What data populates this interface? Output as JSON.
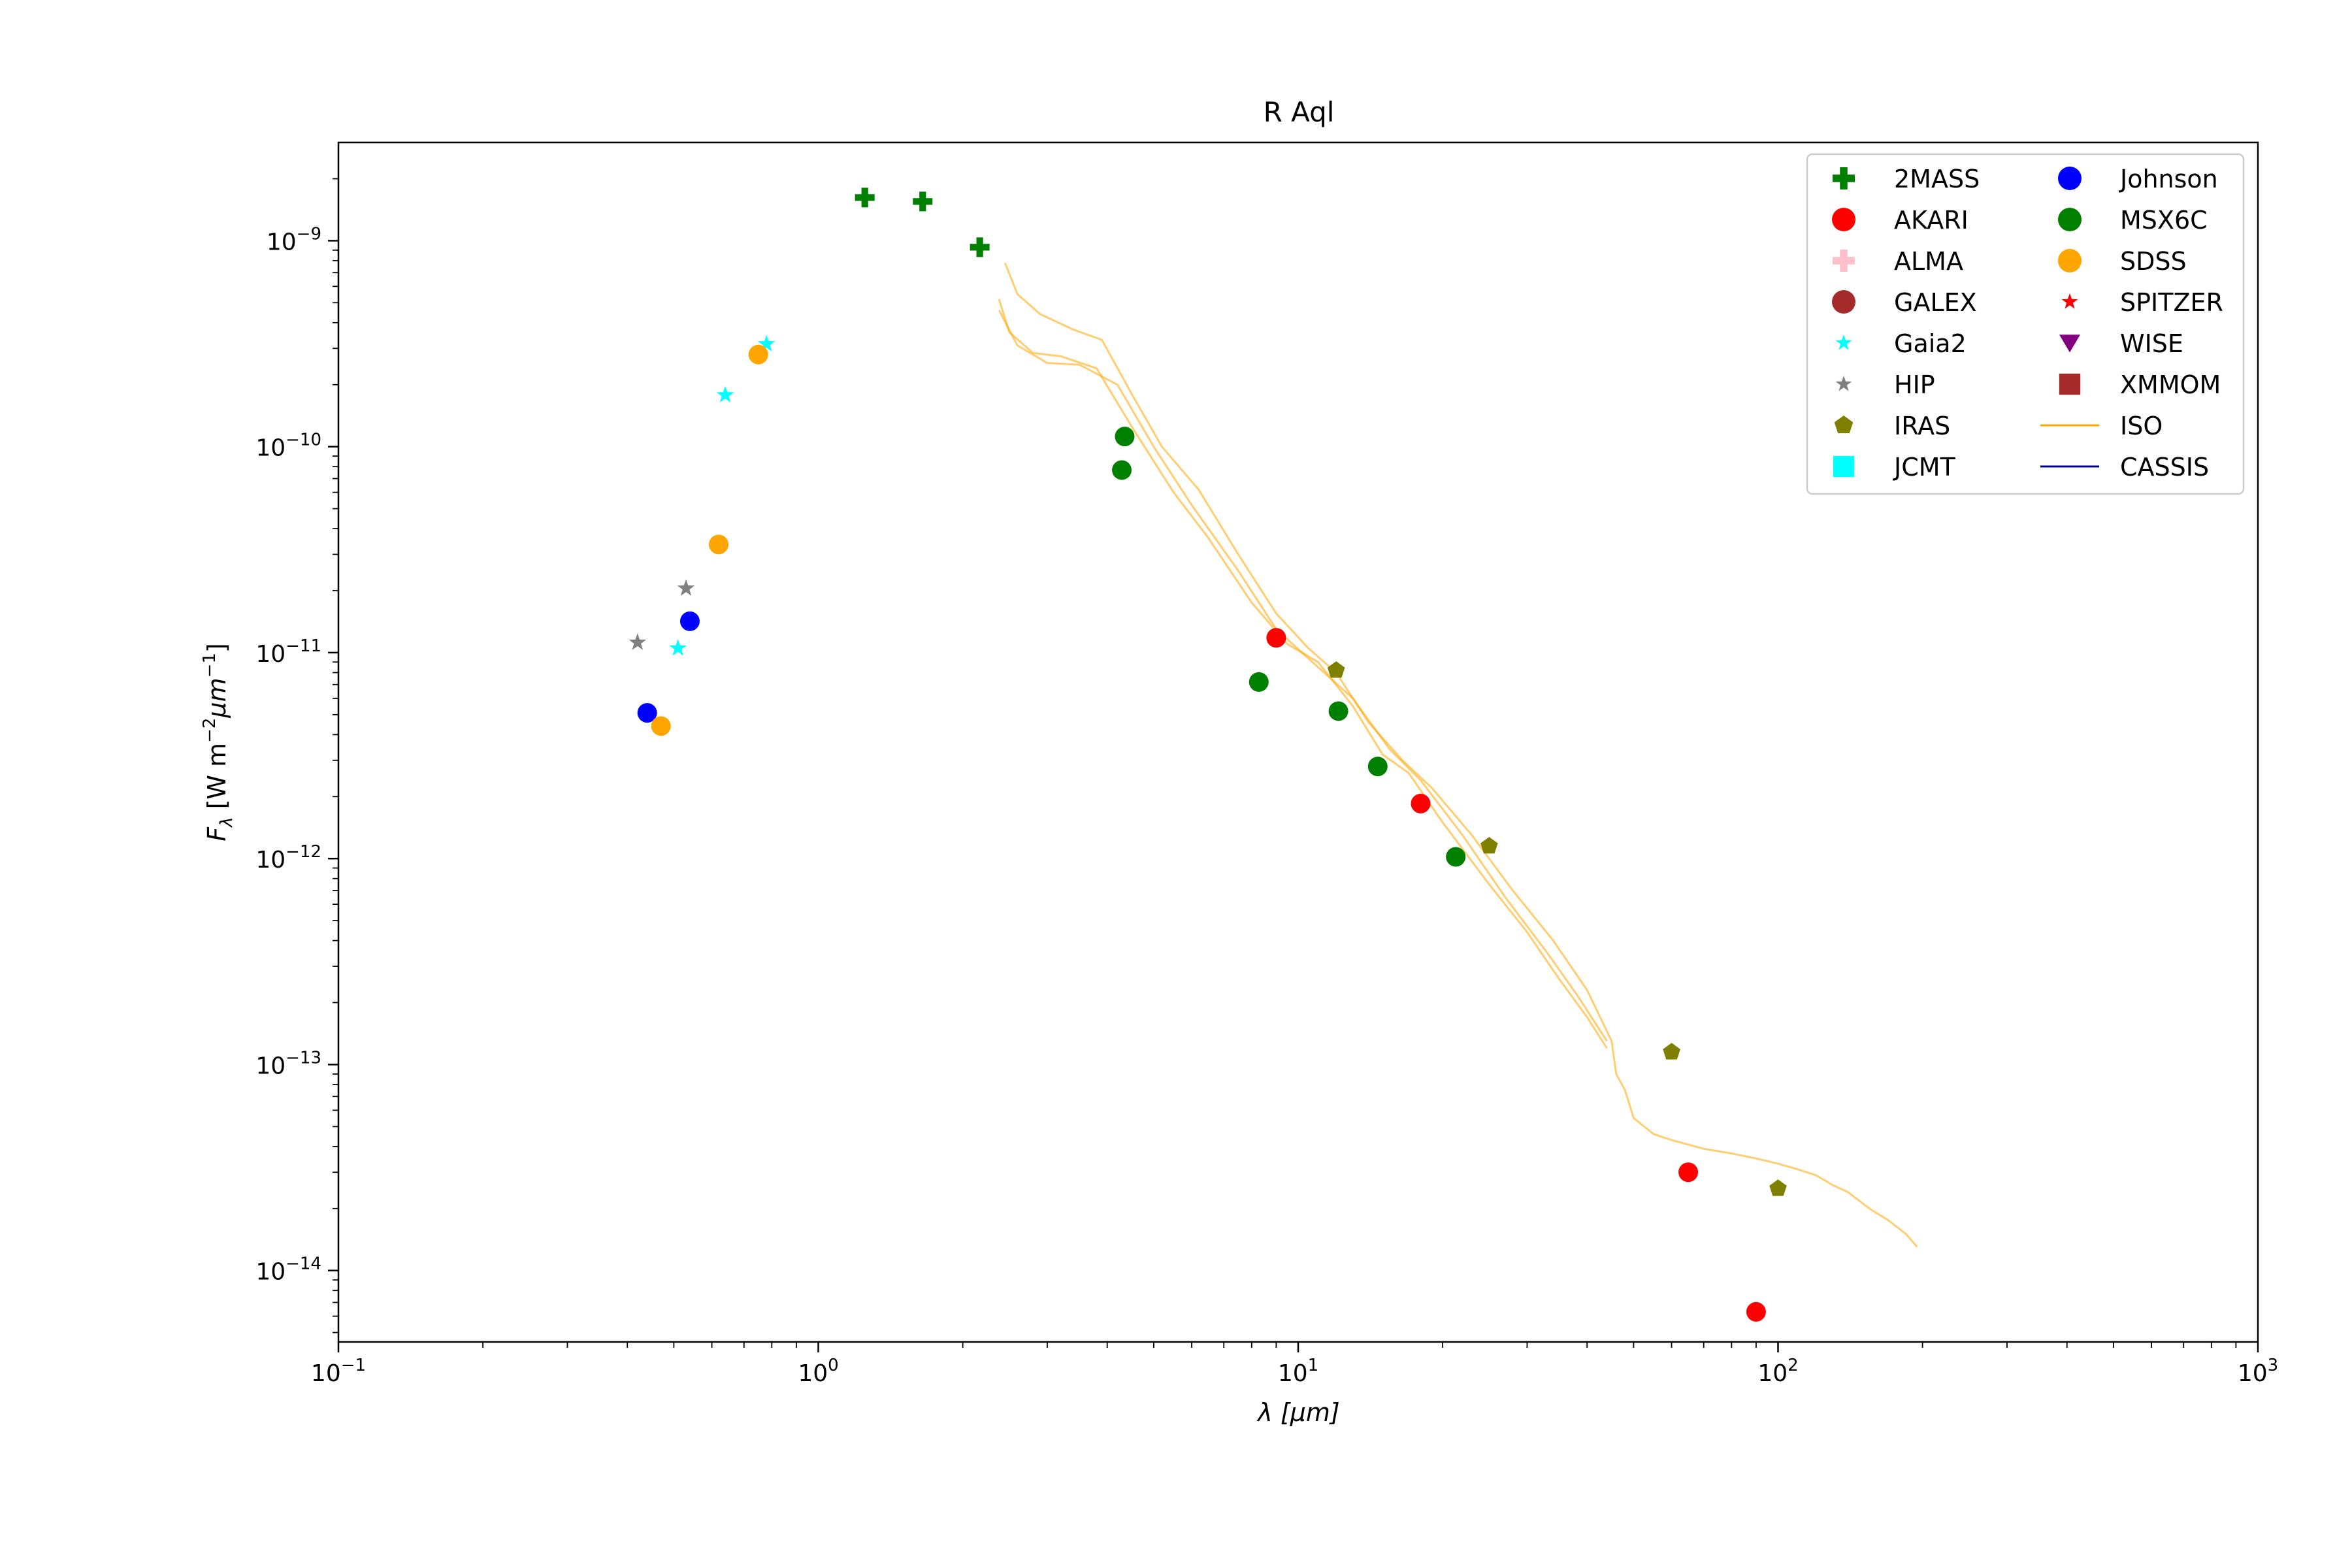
{
  "chart_data": {
    "type": "scatter",
    "title": "R Aql",
    "xlabel": "λ [μm]",
    "ylabel": "F_λ [W m^-2 μm^-1]",
    "xscale": "log",
    "yscale": "log",
    "xlim": [
      0.1,
      1000
    ],
    "ylim": [
      4.5e-15,
      3e-09
    ],
    "grid": false,
    "legend_position": "top-right",
    "legend_columns": 2,
    "x_ticks": [
      {
        "base": "10",
        "exp": "−1",
        "value": 0.1
      },
      {
        "base": "10",
        "exp": "0",
        "value": 1
      },
      {
        "base": "10",
        "exp": "1",
        "value": 10
      },
      {
        "base": "10",
        "exp": "2",
        "value": 100
      },
      {
        "base": "10",
        "exp": "3",
        "value": 1000
      }
    ],
    "y_ticks": [
      {
        "base": "10",
        "exp": "−14",
        "value": 1e-14
      },
      {
        "base": "10",
        "exp": "−13",
        "value": 1e-13
      },
      {
        "base": "10",
        "exp": "−12",
        "value": 1e-12
      },
      {
        "base": "10",
        "exp": "−11",
        "value": 1e-11
      },
      {
        "base": "10",
        "exp": "−10",
        "value": 1e-10
      },
      {
        "base": "10",
        "exp": "−9",
        "value": 1e-09
      }
    ],
    "series": [
      {
        "name": "2MASS",
        "marker": "plus",
        "color": "#008000",
        "points": [
          [
            1.25,
            1.62e-09
          ],
          [
            1.65,
            1.55e-09
          ],
          [
            2.17,
            9.3e-10
          ]
        ]
      },
      {
        "name": "AKARI",
        "marker": "circle",
        "color": "#ff0000",
        "points": [
          [
            9.0,
            1.18e-11
          ],
          [
            18.0,
            1.85e-12
          ],
          [
            65.0,
            3e-14
          ],
          [
            90.0,
            6.3e-15
          ]
        ]
      },
      {
        "name": "ALMA",
        "marker": "plus",
        "color": "#ffc0cb",
        "points": []
      },
      {
        "name": "GALEX",
        "marker": "circle",
        "color": "#a52a2a",
        "points": []
      },
      {
        "name": "Gaia2",
        "marker": "star",
        "color": "#00ffff",
        "points": [
          [
            0.51,
            1.05e-11
          ],
          [
            0.64,
            1.78e-10
          ],
          [
            0.78,
            3.15e-10
          ]
        ]
      },
      {
        "name": "HIP",
        "marker": "star",
        "color": "#808080",
        "points": [
          [
            0.42,
            1.12e-11
          ],
          [
            0.53,
            2.05e-11
          ]
        ]
      },
      {
        "name": "IRAS",
        "marker": "pentagon",
        "color": "#808000",
        "points": [
          [
            12.0,
            8.2e-12
          ],
          [
            25.0,
            1.15e-12
          ],
          [
            60.0,
            1.15e-13
          ],
          [
            100.0,
            2.5e-14
          ]
        ]
      },
      {
        "name": "JCMT",
        "marker": "square",
        "color": "#00ffff",
        "points": []
      },
      {
        "name": "Johnson",
        "marker": "circle",
        "color": "#0000ff",
        "points": [
          [
            0.44,
            5.1e-12
          ],
          [
            0.54,
            1.42e-11
          ]
        ]
      },
      {
        "name": "MSX6C",
        "marker": "circle",
        "color": "#008000",
        "points": [
          [
            4.29,
            7.7e-11
          ],
          [
            4.35,
            1.12e-10
          ],
          [
            8.28,
            7.2e-12
          ],
          [
            12.13,
            5.2e-12
          ],
          [
            14.65,
            2.8e-12
          ],
          [
            21.3,
            1.02e-12
          ]
        ]
      },
      {
        "name": "SDSS",
        "marker": "circle",
        "color": "#ffa500",
        "points": [
          [
            0.47,
            4.4e-12
          ],
          [
            0.62,
            3.35e-11
          ],
          [
            0.75,
            2.8e-10
          ]
        ]
      },
      {
        "name": "SPITZER",
        "marker": "star",
        "color": "#ff0000",
        "points": []
      },
      {
        "name": "WISE",
        "marker": "triangle-down",
        "color": "#800080",
        "points": []
      },
      {
        "name": "XMMOM",
        "marker": "square",
        "color": "#a52a2a",
        "points": []
      },
      {
        "name": "ISO",
        "marker": "line",
        "color": "#ffa500",
        "opacity": 0.55,
        "lines": [
          [
            [
              2.38,
              5.2e-10
            ],
            [
              2.5,
              3.6e-10
            ],
            [
              2.8,
              2.85e-10
            ],
            [
              3.2,
              2.75e-10
            ],
            [
              3.8,
              2.4e-10
            ],
            [
              4.5,
              1.25e-10
            ],
            [
              5.5,
              6e-11
            ],
            [
              6.5,
              3.6e-11
            ],
            [
              8.0,
              1.75e-11
            ],
            [
              9.5,
              1.1e-11
            ],
            [
              11.0,
              9e-12
            ],
            [
              13.0,
              5.5e-12
            ],
            [
              15.0,
              3.2e-12
            ],
            [
              17.0,
              2.6e-12
            ],
            [
              20.0,
              1.5e-12
            ],
            [
              25.0,
              7.5e-13
            ],
            [
              30.0,
              4.4e-13
            ],
            [
              35.0,
              2.6e-13
            ],
            [
              40.0,
              1.7e-13
            ],
            [
              44.0,
              1.2e-13
            ]
          ],
          [
            [
              2.38,
              4.6e-10
            ],
            [
              2.6,
              3.1e-10
            ],
            [
              3.0,
              2.55e-10
            ],
            [
              3.5,
              2.5e-10
            ],
            [
              4.2,
              2e-10
            ],
            [
              5.0,
              1e-10
            ],
            [
              6.0,
              5.2e-11
            ],
            [
              7.5,
              2.5e-11
            ],
            [
              9.0,
              1.3e-11
            ],
            [
              11.0,
              8.5e-12
            ],
            [
              13.0,
              6e-12
            ],
            [
              15.5,
              3.4e-12
            ],
            [
              18.0,
              2.4e-12
            ],
            [
              22.0,
              1.3e-12
            ],
            [
              27.0,
              6.5e-13
            ],
            [
              33.0,
              3.5e-13
            ],
            [
              38.0,
              2.2e-13
            ],
            [
              44.0,
              1.3e-13
            ]
          ],
          [
            [
              2.45,
              7.8e-10
            ],
            [
              2.6,
              5.5e-10
            ],
            [
              2.9,
              4.4e-10
            ],
            [
              3.4,
              3.7e-10
            ],
            [
              3.9,
              3.3e-10
            ],
            [
              4.5,
              1.8e-10
            ],
            [
              5.2,
              1e-10
            ],
            [
              6.2,
              6.2e-11
            ],
            [
              7.5,
              3e-11
            ],
            [
              9.0,
              1.55e-11
            ],
            [
              10.5,
              1.05e-11
            ],
            [
              12.0,
              8e-12
            ],
            [
              14.0,
              4.6e-12
            ],
            [
              16.5,
              3e-12
            ],
            [
              19.0,
              2.2e-12
            ],
            [
              23.0,
              1.3e-12
            ],
            [
              28.0,
              7e-13
            ],
            [
              34.0,
              4e-13
            ],
            [
              40.0,
              2.3e-13
            ],
            [
              45.0,
              1.3e-13
            ]
          ],
          [
            [
              45.0,
              1.3e-13
            ],
            [
              46.0,
              9e-14
            ],
            [
              48.0,
              7.5e-14
            ],
            [
              50.0,
              5.5e-14
            ],
            [
              55.0,
              4.6e-14
            ],
            [
              60.0,
              4.3e-14
            ],
            [
              70.0,
              3.9e-14
            ],
            [
              80.0,
              3.7e-14
            ],
            [
              90.0,
              3.5e-14
            ],
            [
              100.0,
              3.3e-14
            ],
            [
              110.0,
              3.1e-14
            ],
            [
              120.0,
              2.9e-14
            ],
            [
              130.0,
              2.6e-14
            ],
            [
              140.0,
              2.4e-14
            ],
            [
              155.0,
              2e-14
            ],
            [
              170.0,
              1.75e-14
            ],
            [
              185.0,
              1.5e-14
            ],
            [
              195.0,
              1.3e-14
            ]
          ]
        ]
      },
      {
        "name": "CASSIS",
        "marker": "line",
        "color": "#00008b",
        "lines": []
      }
    ]
  }
}
